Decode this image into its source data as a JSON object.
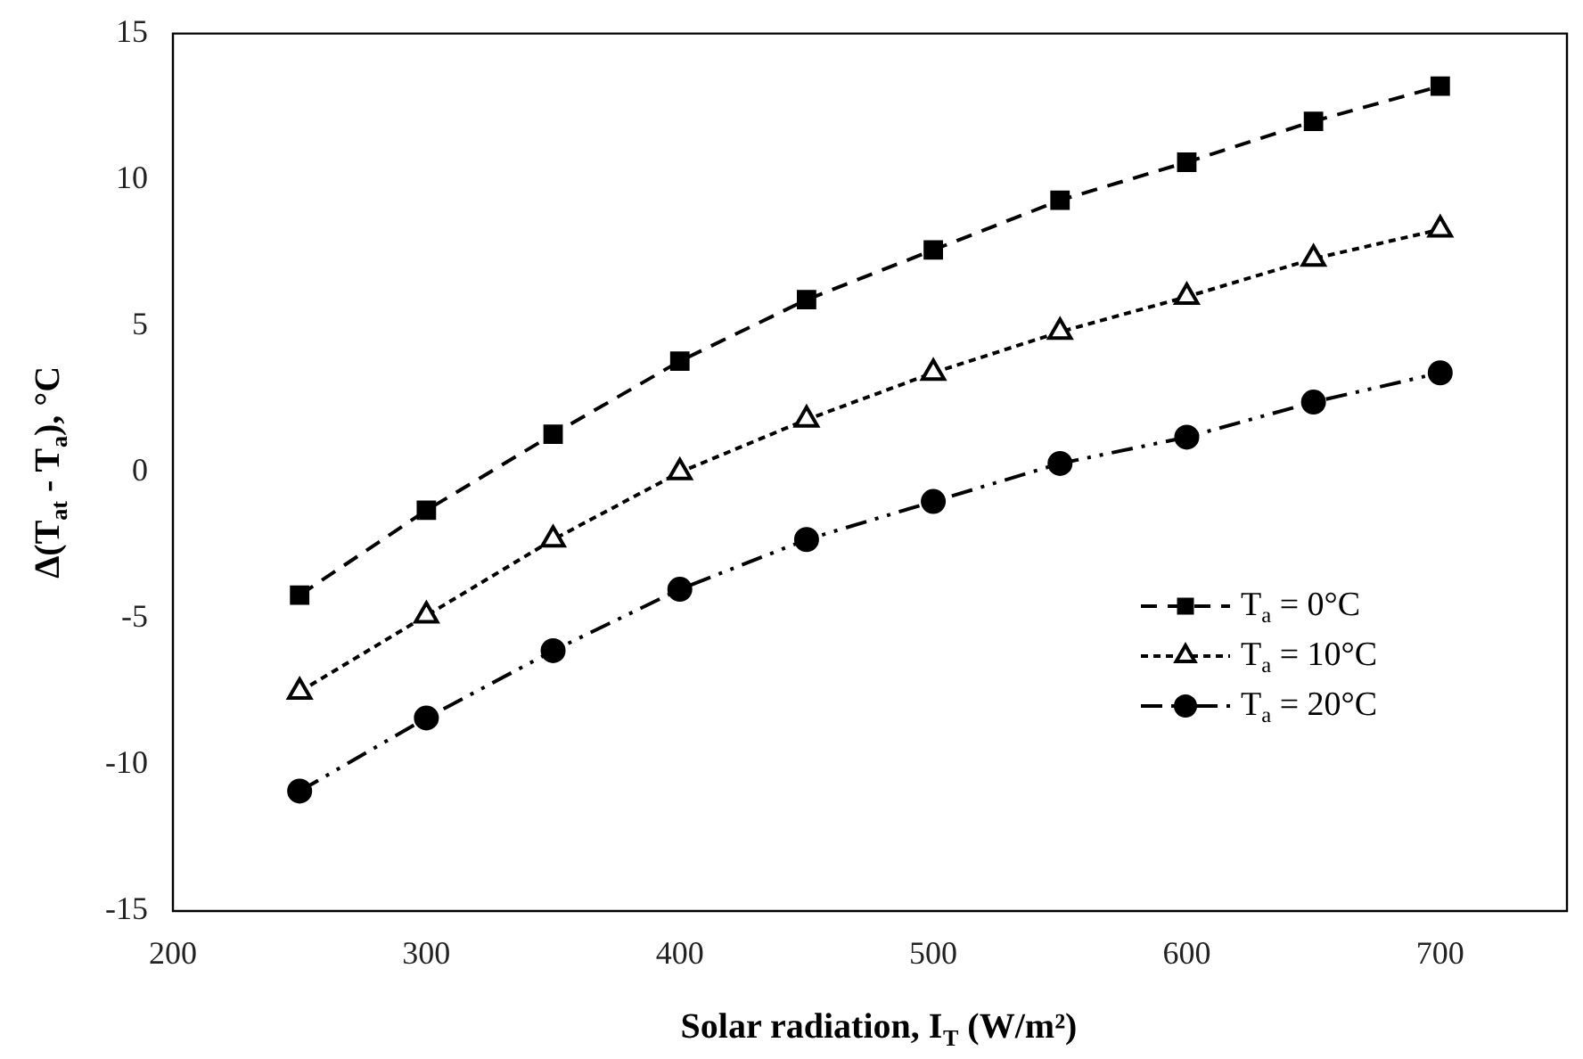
{
  "chart_data": {
    "type": "line",
    "xlabel": "Solar radiation, I$_{T}$ (W/m²)",
    "ylabel": "Δ(T$_{at}$ - T$_{a}$), °C",
    "x": [
      250,
      300,
      350,
      400,
      450,
      500,
      550,
      600,
      650,
      700
    ],
    "series": [
      {
        "name": "T$_{a}$ = 0°C",
        "color": "#000000",
        "marker": "square",
        "line_style": "dashed",
        "values": [
          -4.2,
          -1.3,
          1.3,
          3.8,
          5.9,
          7.6,
          9.3,
          10.6,
          12.0,
          13.2
        ]
      },
      {
        "name": "T$_{a}$ = 10°C",
        "color": "#000000",
        "marker": "triangle",
        "line_style": "dotted",
        "values": [
          -7.5,
          -4.9,
          -2.3,
          0.0,
          1.8,
          3.4,
          4.8,
          6.0,
          7.3,
          8.3
        ]
      },
      {
        "name": "T$_{a}$ = 20°C",
        "color": "#000000",
        "marker": "circle",
        "line_style": "dashdot",
        "values": [
          -10.9,
          -8.4,
          -6.1,
          -4.0,
          -2.3,
          -1.0,
          0.3,
          1.2,
          2.4,
          3.4
        ]
      }
    ],
    "xlim": [
      200,
      750
    ],
    "xticks": [
      200,
      300,
      400,
      500,
      600,
      700
    ],
    "ylim": [
      -15,
      15
    ],
    "yticks": [
      -15,
      -10,
      -5,
      0,
      5,
      10,
      15
    ],
    "grid": false,
    "legend": "bottom right"
  }
}
